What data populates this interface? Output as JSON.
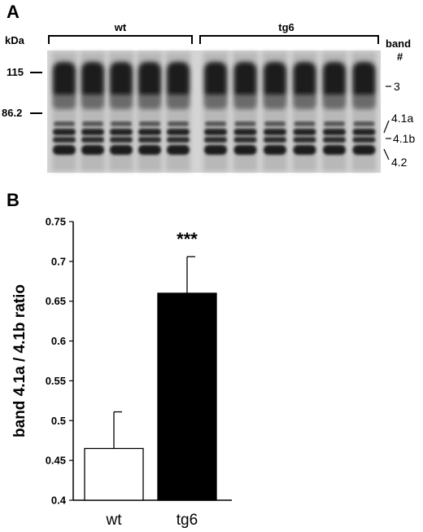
{
  "panel_a": {
    "letter": "A",
    "kda_label": "kDa",
    "marker_115": "115",
    "marker_86": "86.2",
    "group_wt": "wt",
    "group_tg6": "tg6",
    "band_header_1": "band",
    "band_header_2": "#",
    "band_labels": [
      "3",
      "4.1a",
      "4.1b",
      "4.2"
    ],
    "lane_count_wt": 5,
    "lane_count_tg6": 6
  },
  "panel_b": {
    "letter": "B",
    "significance": "***"
  },
  "chart_data": {
    "type": "bar",
    "categories": [
      "wt",
      "tg6"
    ],
    "values": [
      0.465,
      0.66
    ],
    "errors": [
      0.046,
      0.046
    ],
    "bar_colors": [
      "#ffffff",
      "#000000"
    ],
    "title": "",
    "xlabel": "",
    "ylabel": "band 4.1a / 4.1b ratio",
    "ylim": [
      0.4,
      0.75
    ],
    "yticks": [
      "0.4",
      "0.45",
      "0.5",
      "0.55",
      "0.6",
      "0.65",
      "0.7",
      "0.75"
    ],
    "grid": false
  }
}
